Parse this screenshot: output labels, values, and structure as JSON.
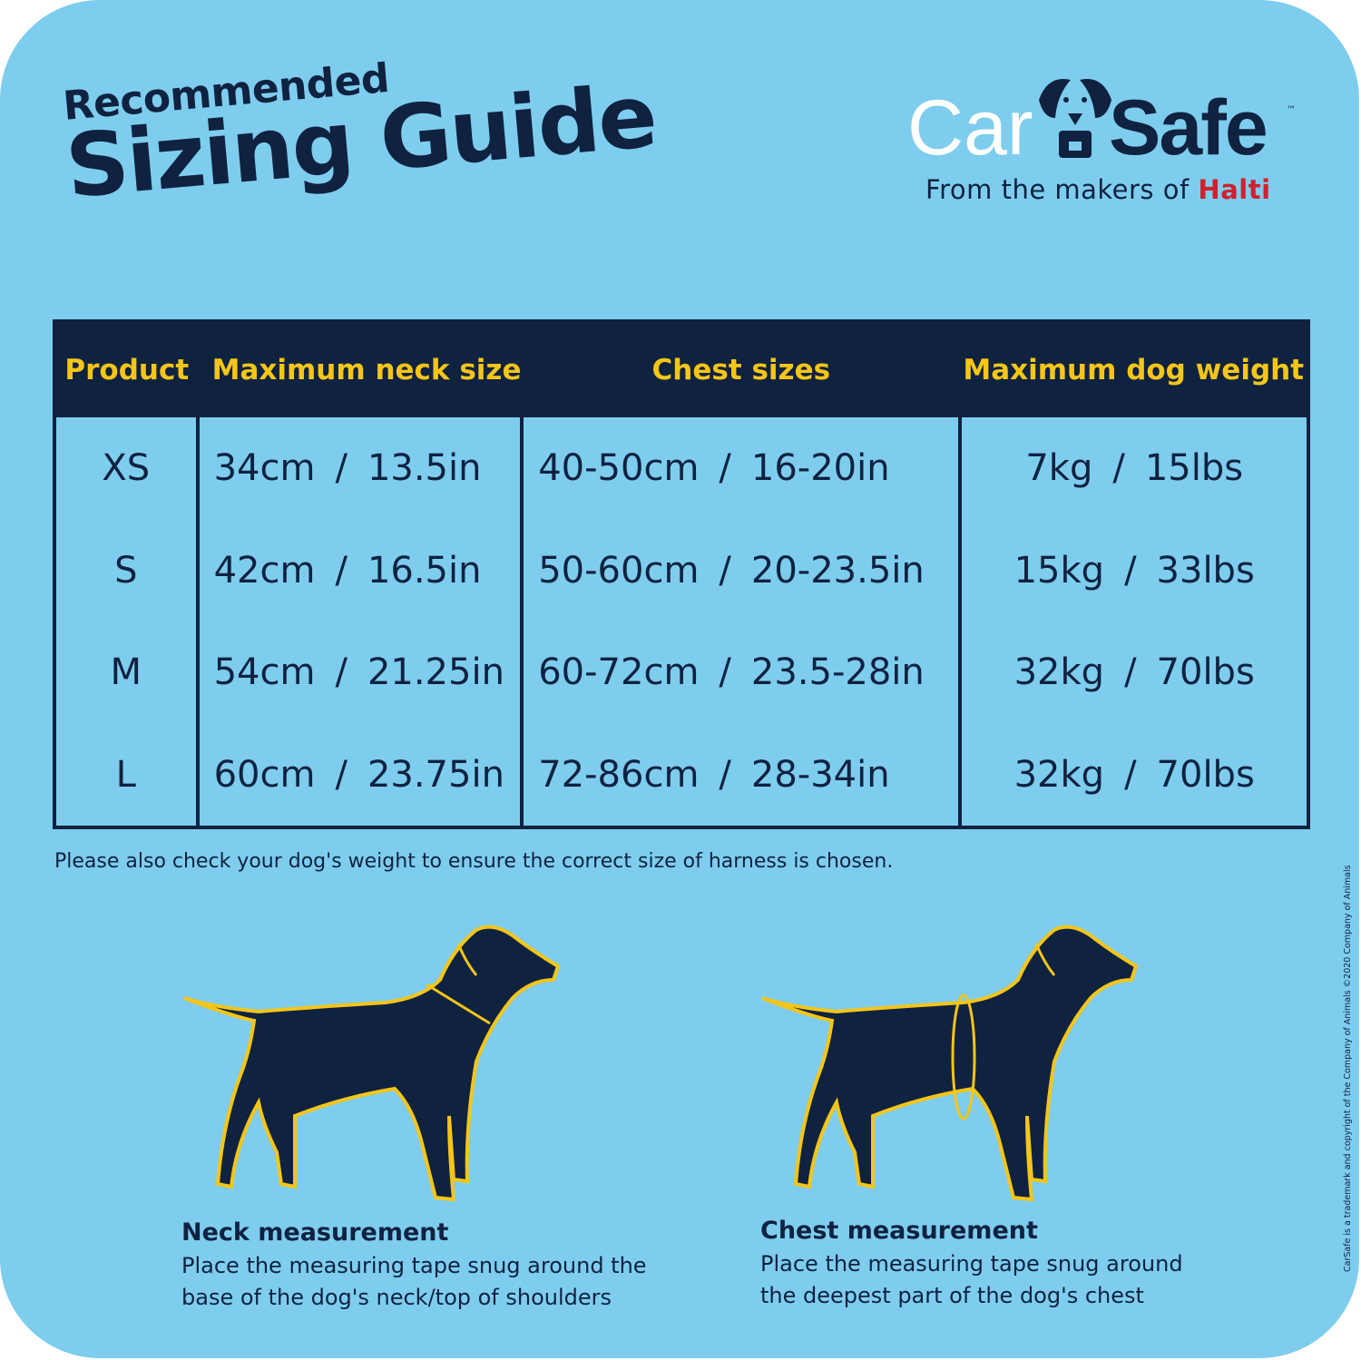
{
  "title": {
    "line1": "Recommended",
    "line2": "Sizing Guide"
  },
  "logo": {
    "car": "Car",
    "safe": "Safe",
    "tm": "™",
    "tagline": "From the makers of",
    "halti": "Halti"
  },
  "colors": {
    "background": "#7ecdee",
    "navy": "#0f2240",
    "yellow": "#f5c518",
    "halti_red": "#d0202e"
  },
  "table": {
    "headers": [
      "Product",
      "Maximum neck size",
      "Chest sizes",
      "Maximum dog weight"
    ],
    "rows": [
      {
        "product": "XS",
        "neck": [
          "34cm",
          "13.5in"
        ],
        "chest": [
          "40-50cm",
          "16-20in"
        ],
        "weight": [
          "7kg",
          "15lbs"
        ]
      },
      {
        "product": "S",
        "neck": [
          "42cm",
          "16.5in"
        ],
        "chest": [
          "50-60cm",
          "20-23.5in"
        ],
        "weight": [
          "15kg",
          "33lbs"
        ]
      },
      {
        "product": "M",
        "neck": [
          "54cm",
          "21.25in"
        ],
        "chest": [
          "60-72cm",
          "23.5-28in"
        ],
        "weight": [
          "32kg",
          "70lbs"
        ]
      },
      {
        "product": "L",
        "neck": [
          "60cm",
          "23.75in"
        ],
        "chest": [
          "72-86cm",
          "28-34in"
        ],
        "weight": [
          "32kg",
          "70lbs"
        ]
      }
    ]
  },
  "note": "Please also check your dog's weight to ensure the correct size of harness is chosen.",
  "copyright": "CarSafe is a  trademark and copyright of the Company of Animals ©2020 Company of Animals",
  "neck": {
    "title": "Neck measurement",
    "text": "Place the measuring tape snug around the base of the dog's neck/top of shoulders"
  },
  "chest": {
    "title": "Chest measurement",
    "text": "Place the measuring tape snug around the deepest part of the dog's chest"
  }
}
